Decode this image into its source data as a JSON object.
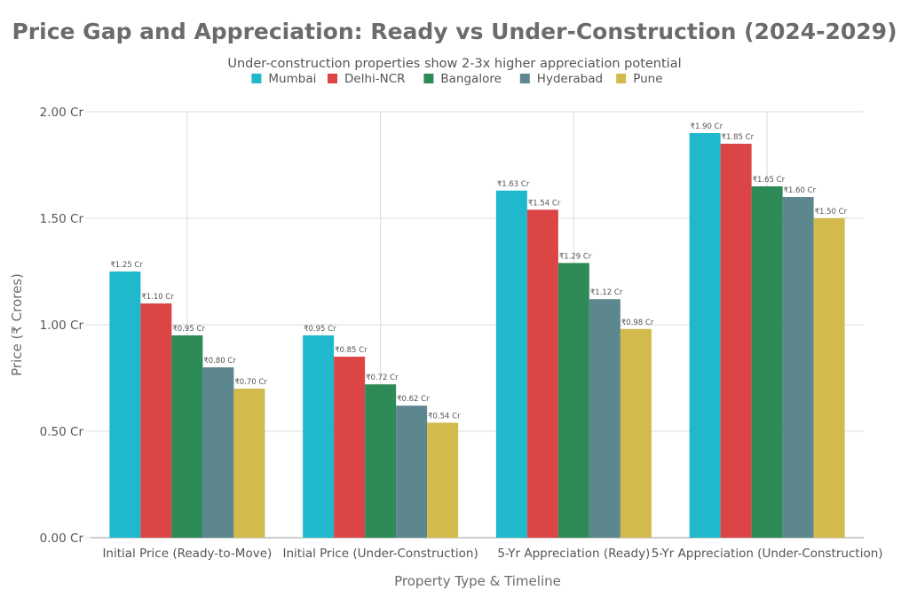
{
  "chart_data": {
    "type": "bar",
    "title": "Price Gap and Appreciation: Ready vs Under-Construction (2024-2029)",
    "subtitle": "Under-construction properties show 2-3x higher appreciation potential",
    "xlabel": "Property Type & Timeline",
    "ylabel": "Price (₹ Crores)",
    "ylim": [
      0,
      2.0
    ],
    "y_ticks": [
      {
        "value": 0,
        "label": "0.00 Cr"
      },
      {
        "value": 0.5,
        "label": "0.50 Cr"
      },
      {
        "value": 1.0,
        "label": "1.00 Cr"
      },
      {
        "value": 1.5,
        "label": "1.50 Cr"
      },
      {
        "value": 2.0,
        "label": "2.00 Cr"
      }
    ],
    "grid": true,
    "legend_position": "top-center",
    "categories": [
      "Initial Price (Ready-to-Move)",
      "Initial Price (Under-Construction)",
      "5-Yr Appreciation (Ready)",
      "5-Yr Appreciation (Under-Construction)"
    ],
    "series": [
      {
        "name": "Mumbai",
        "color": "#1fb8cd",
        "values": [
          1.25,
          0.95,
          1.63,
          1.9
        ],
        "labels": [
          "₹1.25 Cr",
          "₹0.95 Cr",
          "₹1.63 Cr",
          "₹1.90 Cr"
        ]
      },
      {
        "name": "Delhi-NCR",
        "color": "#db4545",
        "values": [
          1.1,
          0.85,
          1.54,
          1.85
        ],
        "labels": [
          "₹1.10 Cr",
          "₹0.85 Cr",
          "₹1.54 Cr",
          "₹1.85 Cr"
        ]
      },
      {
        "name": "Bangalore",
        "color": "#2e8b57",
        "values": [
          0.95,
          0.72,
          1.29,
          1.65
        ],
        "labels": [
          "₹0.95 Cr",
          "₹0.72 Cr",
          "₹1.29 Cr",
          "₹1.65 Cr"
        ]
      },
      {
        "name": "Hyderabad",
        "color": "#5d878f",
        "values": [
          0.8,
          0.62,
          1.12,
          1.6
        ],
        "labels": [
          "₹0.80 Cr",
          "₹0.62 Cr",
          "₹1.12 Cr",
          "₹1.60 Cr"
        ]
      },
      {
        "name": "Pune",
        "color": "#d2ba4c",
        "values": [
          0.7,
          0.54,
          0.98,
          1.5
        ],
        "labels": [
          "₹0.70 Cr",
          "₹0.54 Cr",
          "₹0.98 Cr",
          "₹1.50 Cr"
        ]
      }
    ]
  }
}
